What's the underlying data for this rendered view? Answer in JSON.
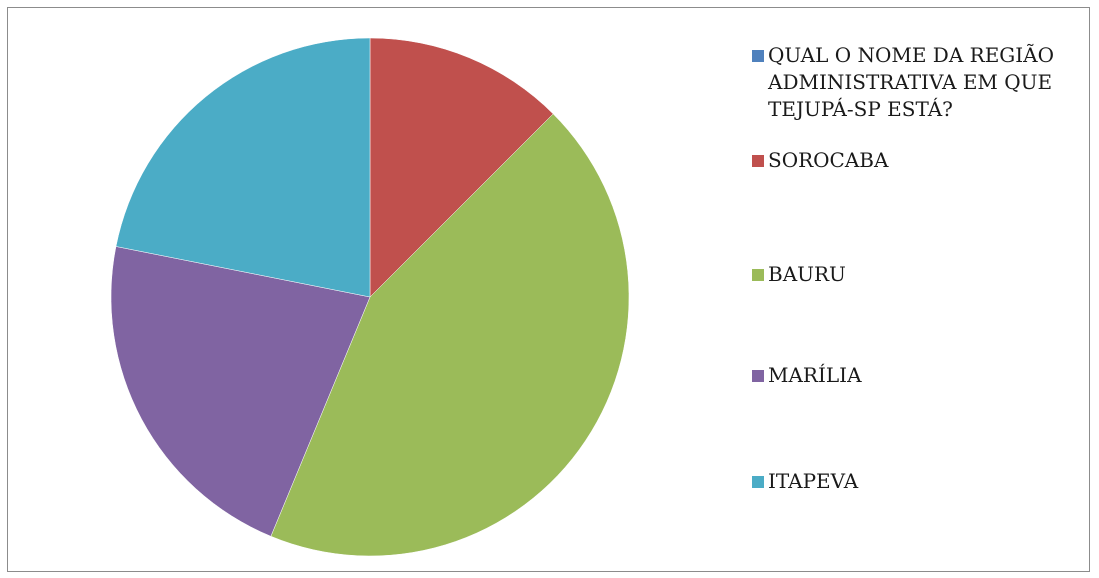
{
  "chart_data": {
    "type": "pie",
    "start_angle": "12 o'clock",
    "direction": "clockwise",
    "legend_position": "right",
    "slices": [
      {
        "label": "QUAL O NOME DA REGIÃO ADMINISTRATIVA EM QUE TEJUPÁ-SP ESTÁ?",
        "value": 0,
        "color": "#4F81BD"
      },
      {
        "label": "SOROCABA",
        "value": 12.5,
        "color": "#C0504D"
      },
      {
        "label": "BAURU",
        "value": 43.75,
        "color": "#9BBB59"
      },
      {
        "label": "MARÍLIA",
        "value": 21.875,
        "color": "#8064A2"
      },
      {
        "label": "ITAPEVA",
        "value": 21.875,
        "color": "#4BACC6"
      }
    ]
  }
}
